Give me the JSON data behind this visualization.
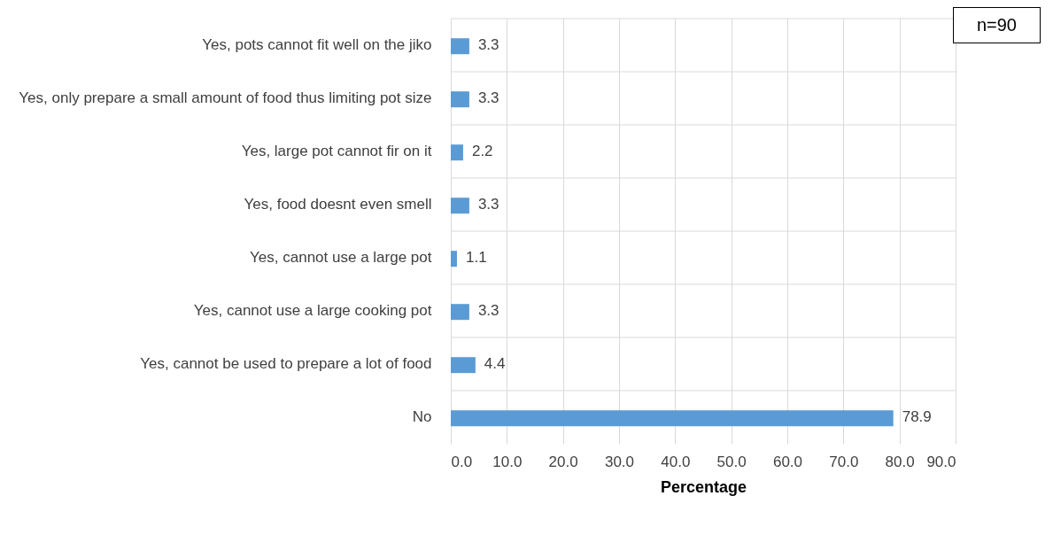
{
  "chart_data": {
    "type": "bar",
    "orientation": "horizontal",
    "xlabel": "Percentage",
    "categories": [
      "Yes, pots cannot fit well on the jiko",
      "Yes, only prepare a small amount of food thus limiting pot size",
      "Yes, large pot cannot fir on it",
      "Yes, food doesnt even smell",
      "Yes, cannot use a large pot",
      "Yes, cannot use a large cooking pot",
      "Yes, cannot be used to prepare a lot of food",
      "No"
    ],
    "values": [
      3.3,
      3.3,
      2.2,
      3.3,
      1.1,
      3.3,
      4.4,
      78.9
    ],
    "color": "#5b9bd5",
    "data_labels": true,
    "grid": true,
    "xlim": [
      0,
      90
    ],
    "xticks": [
      {
        "value": 0,
        "label": "0.0"
      },
      {
        "value": 10,
        "label": "10.0"
      },
      {
        "value": 20,
        "label": "20.0"
      },
      {
        "value": 30,
        "label": "30.0"
      },
      {
        "value": 40,
        "label": "40.0"
      },
      {
        "value": 50,
        "label": "50.0"
      },
      {
        "value": 60,
        "label": "60.0"
      },
      {
        "value": 70,
        "label": "70.0"
      },
      {
        "value": 80,
        "label": "80.0"
      },
      {
        "value": 90,
        "label": "90.0"
      }
    ],
    "annotations": [
      "n=90"
    ]
  }
}
